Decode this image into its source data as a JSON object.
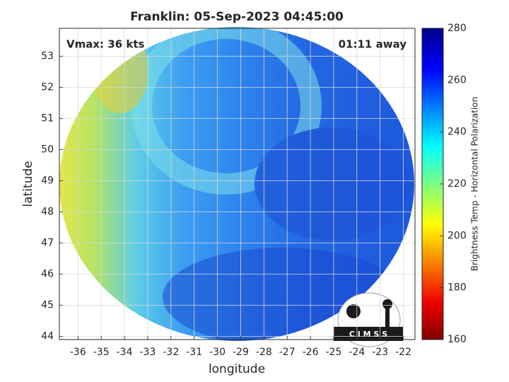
{
  "title": "Franklin: 05-Sep-2023 04:45:00",
  "annotations": {
    "left": "Vmax: 36 kts",
    "right": "01:11 away"
  },
  "x_axis": {
    "label": "longitude",
    "lim": [
      -36.8,
      -21.5
    ],
    "ticks": [
      -36,
      -35,
      -34,
      -33,
      -32,
      -31,
      -30,
      -29,
      -28,
      -27,
      -26,
      -25,
      -24,
      -23,
      -22
    ]
  },
  "y_axis": {
    "label": "latitude",
    "lim": [
      43.9,
      53.9
    ],
    "ticks": [
      44,
      45,
      46,
      47,
      48,
      49,
      50,
      51,
      52,
      53
    ]
  },
  "colorbar": {
    "label": "Brightness Temp - Horizontal Polarization",
    "lim": [
      160,
      280
    ],
    "ticks": [
      160,
      180,
      200,
      220,
      240,
      260,
      280
    ]
  },
  "logo": "C I M S S"
}
